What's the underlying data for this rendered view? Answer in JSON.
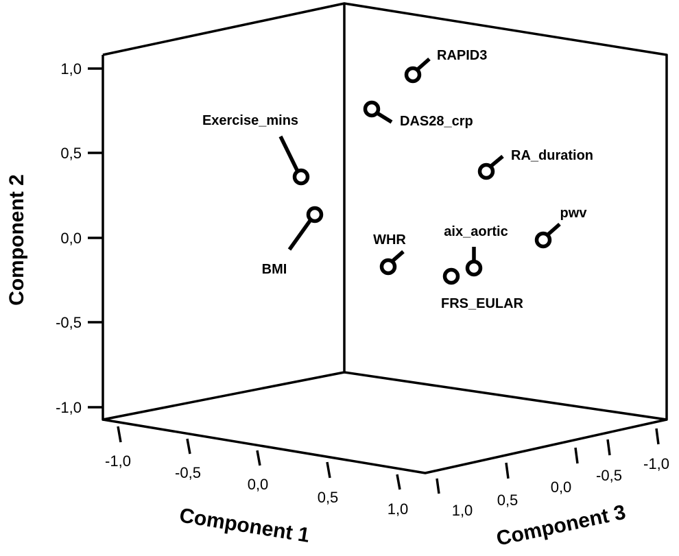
{
  "chart_data": {
    "type": "scatter",
    "subtype": "3d-scatter",
    "axes": {
      "x": {
        "label": "Component 1",
        "ticks": [
          "-1,0",
          "-0,5",
          "0,0",
          "0,5",
          "1,0"
        ],
        "range": [
          -1.0,
          1.0
        ]
      },
      "y": {
        "label": "Component 2",
        "ticks": [
          "1,0",
          "0,5",
          "0,0",
          "-0,5",
          "-1,0"
        ],
        "range": [
          -1.0,
          1.0
        ]
      },
      "z": {
        "label": "Component 3",
        "ticks": [
          "1,0",
          "0,5",
          "0,0",
          "-0,5",
          "-1,0"
        ],
        "range": [
          -1.0,
          1.0
        ]
      }
    },
    "points": [
      {
        "label": "RAPID3",
        "y": 0.97
      },
      {
        "label": "DAS28_crp",
        "y": 0.76
      },
      {
        "label": "Exercise_mins",
        "y": 0.36
      },
      {
        "label": "RA_duration",
        "y": 0.4
      },
      {
        "label": "BMI",
        "y": 0.14
      },
      {
        "label": "pwv",
        "y": -0.01
      },
      {
        "label": "WHR",
        "y": -0.17
      },
      {
        "label": "aix_aortic",
        "y": -0.17
      },
      {
        "label": "FRS_EULAR",
        "y": -0.22
      }
    ],
    "grid": false,
    "legend": "none"
  }
}
